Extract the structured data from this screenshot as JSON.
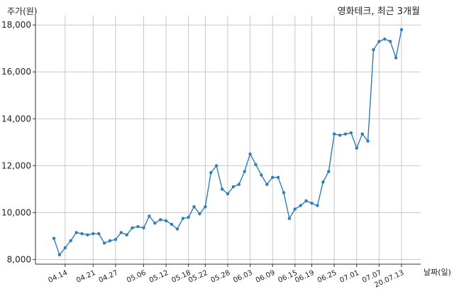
{
  "chart_data": {
    "type": "line",
    "title": "영화테크, 최근 3개월",
    "ylabel": "주가(원)",
    "xlabel": "날짜(일)",
    "ylim": [
      7800,
      18400
    ],
    "yticks": [
      8000,
      10000,
      12000,
      14000,
      16000,
      18000
    ],
    "ytick_labels": [
      "8,000",
      "10,000",
      "12,000",
      "14,000",
      "16,000",
      "18,000"
    ],
    "xtick_labels": [
      "04.14",
      "04.21",
      "04.27",
      "05.06",
      "05.12",
      "05.18",
      "05.22",
      "05.28",
      "06.03",
      "06.09",
      "06.15",
      "06.19",
      "06.25",
      "07.01",
      "07.07",
      "20.07.13"
    ],
    "xtick_index": [
      2,
      7,
      11,
      16,
      20,
      24,
      27,
      31,
      35,
      39,
      43,
      46,
      50,
      54,
      58,
      62
    ],
    "grid": true,
    "color": "#2e7db5",
    "series": [
      {
        "values": [
          8900,
          8200,
          8500,
          8800,
          9150,
          9100,
          9050,
          9100,
          9100,
          8700,
          8800,
          8850,
          9150,
          9050,
          9350,
          9400,
          9350,
          9850,
          9550,
          9700,
          9650,
          9500,
          9300,
          9750,
          9800,
          10250,
          9950,
          10250,
          11700,
          12000,
          11000,
          10800,
          11100,
          11200,
          11750,
          12500,
          12050,
          11600,
          11200,
          11500,
          11500,
          10850,
          9750,
          10150,
          10300,
          10500,
          10400,
          10300,
          11300,
          11750,
          13350,
          13300,
          13350,
          13400,
          12750,
          13350,
          13050,
          16950,
          17300,
          17400,
          17300,
          16600,
          17800
        ]
      }
    ]
  }
}
